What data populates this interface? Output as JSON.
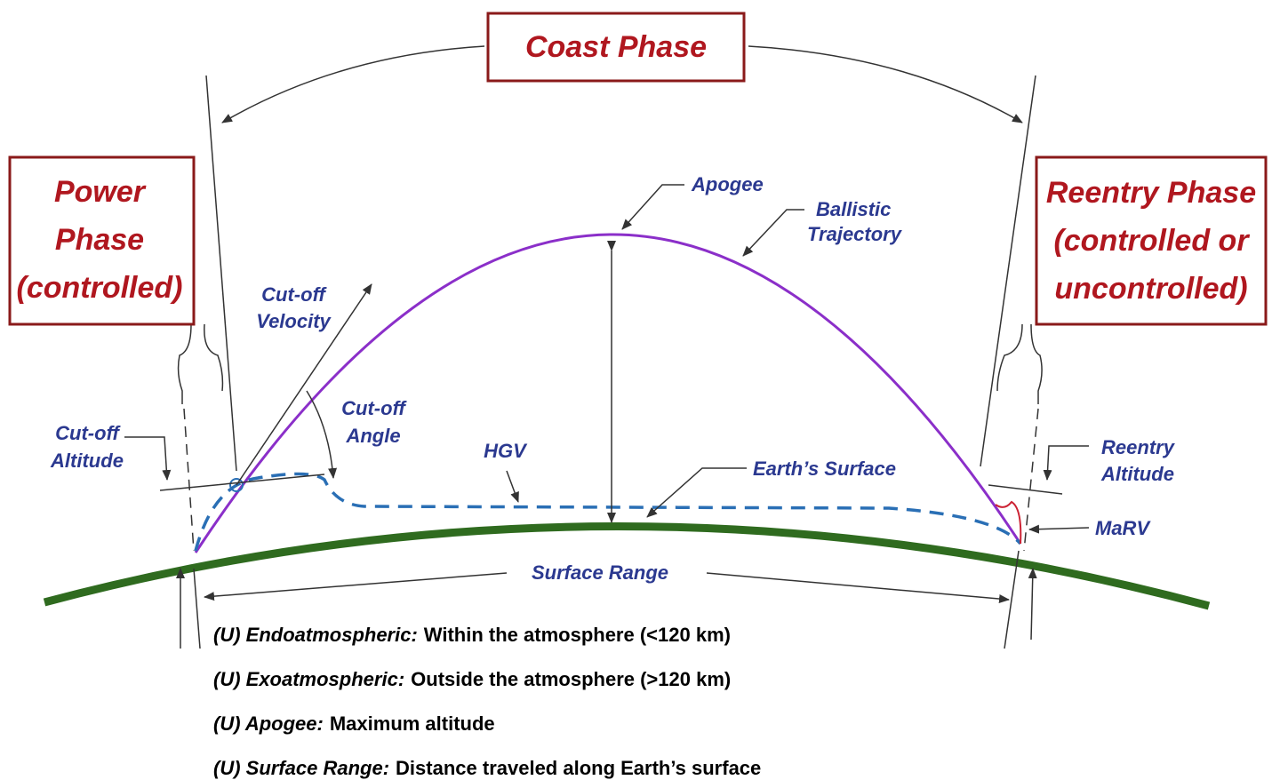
{
  "phases": {
    "coast": "Coast Phase",
    "power": [
      "Power",
      "Phase",
      "(controlled)"
    ],
    "reentry": [
      "Reentry Phase",
      "(controlled or",
      "uncontrolled)"
    ]
  },
  "labels": {
    "apogee": "Apogee",
    "ballistic": [
      "Ballistic",
      "Trajectory"
    ],
    "cutoff_velocity": [
      "Cut-off",
      "Velocity"
    ],
    "cutoff_angle": [
      "Cut-off",
      "Angle"
    ],
    "cutoff_altitude": [
      "Cut-off",
      "Altitude"
    ],
    "hgv": "HGV",
    "earth_surface": "Earth’s Surface",
    "reentry_altitude": [
      "Reentry",
      "Altitude"
    ],
    "marv": "MaRV",
    "surface_range": "Surface Range"
  },
  "definitions": [
    {
      "term": "(U) Endoatmospheric:",
      "text": "Within the atmosphere (<120 km)"
    },
    {
      "term": "(U) Exoatmospheric:",
      "text": "Outside the atmosphere (>120 km)"
    },
    {
      "term": "(U) Apogee:",
      "text": "Maximum altitude"
    },
    {
      "term": "(U) Surface Range:",
      "text": "Distance traveled along Earth’s surface"
    }
  ]
}
